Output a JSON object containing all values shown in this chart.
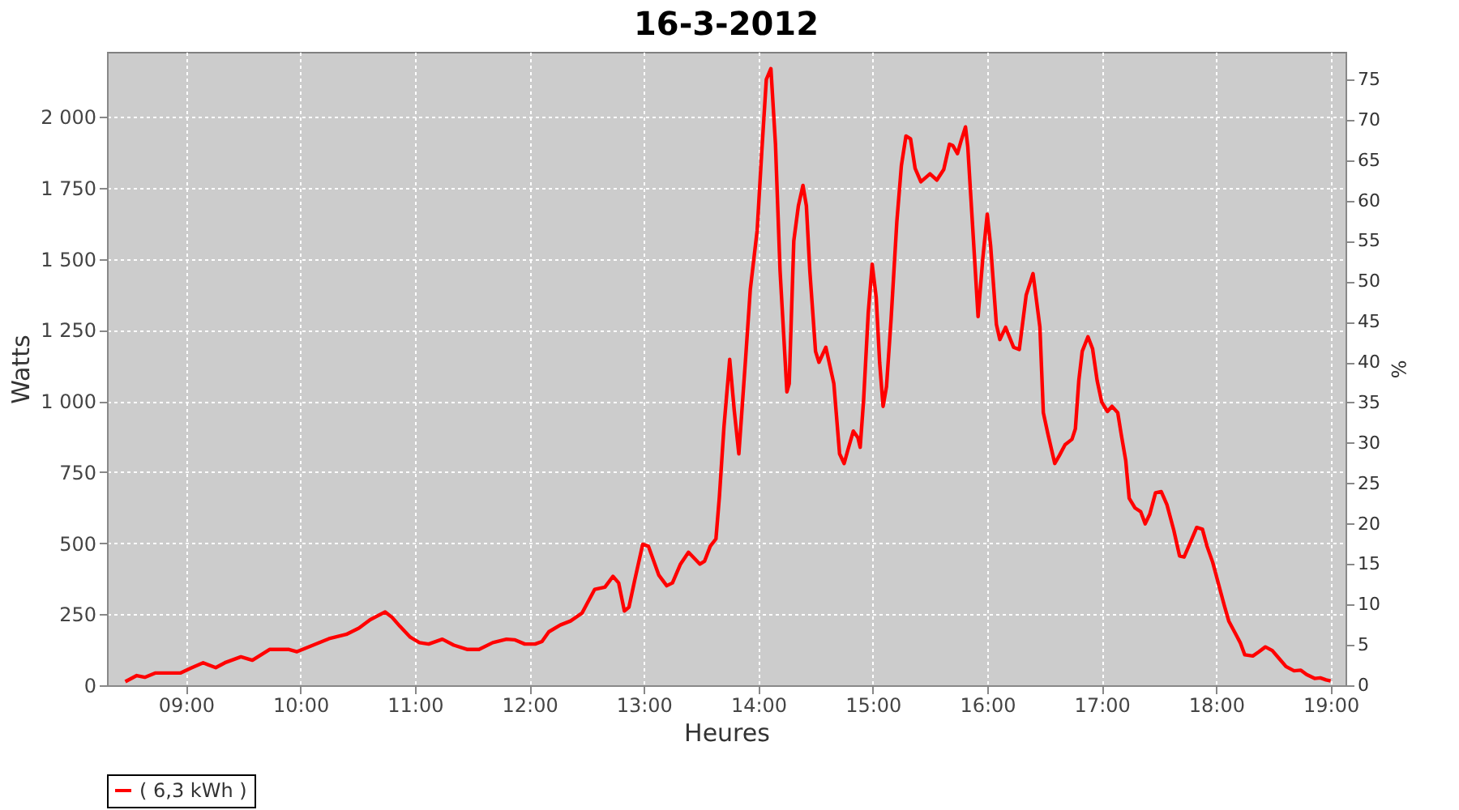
{
  "chart_data": {
    "type": "line",
    "title": "16-3-2012",
    "xlabel": "Heures",
    "ylabel": "Watts",
    "y2label": "%",
    "xlim": [
      8.31,
      19.13
    ],
    "xticks": [
      {
        "value": 9,
        "label": "09:00"
      },
      {
        "value": 10,
        "label": "10:00"
      },
      {
        "value": 11,
        "label": "11:00"
      },
      {
        "value": 12,
        "label": "12:00"
      },
      {
        "value": 13,
        "label": "13:00"
      },
      {
        "value": 14,
        "label": "14:00"
      },
      {
        "value": 15,
        "label": "15:00"
      },
      {
        "value": 16,
        "label": "16:00"
      },
      {
        "value": 17,
        "label": "17:00"
      },
      {
        "value": 18,
        "label": "18:00"
      },
      {
        "value": 19,
        "label": "19:00"
      }
    ],
    "ylim": [
      0,
      2228
    ],
    "yticks": [
      0,
      250,
      500,
      750,
      {
        "value": 1000,
        "label": "1 000"
      },
      {
        "value": 1250,
        "label": "1 250"
      },
      {
        "value": 1500,
        "label": "1 500"
      },
      {
        "value": 1750,
        "label": "1 750"
      },
      {
        "value": 2000,
        "label": "2 000"
      }
    ],
    "y2lim": [
      0,
      78.4
    ],
    "y2ticks": [
      0,
      5,
      10,
      15,
      20,
      25,
      30,
      35,
      40,
      45,
      50,
      55,
      60,
      65,
      70,
      75
    ],
    "grid": true,
    "legend": "bottom",
    "marker": "none",
    "line_style": "solid",
    "series": [
      {
        "name": "( 6,3 kWh )",
        "color": "#ff0000",
        "x": [
          8.47,
          8.57,
          8.64,
          8.73,
          8.95,
          9.04,
          9.15,
          9.26,
          9.35,
          9.48,
          9.58,
          9.73,
          9.9,
          9.97,
          10.11,
          10.25,
          10.4,
          10.51,
          10.61,
          10.74,
          10.8,
          10.87,
          10.96,
          11.04,
          11.12,
          11.24,
          11.34,
          11.46,
          11.56,
          11.68,
          11.8,
          11.87,
          11.96,
          12.05,
          12.11,
          12.17,
          12.27,
          12.36,
          12.46,
          12.5,
          12.57,
          12.66,
          12.73,
          12.78,
          12.83,
          12.87,
          12.92,
          12.99,
          13.04,
          13.13,
          13.2,
          13.25,
          13.32,
          13.39,
          13.49,
          13.53,
          13.58,
          13.63,
          13.66,
          13.7,
          13.75,
          13.79,
          13.83,
          13.89,
          13.93,
          13.99,
          14.03,
          14.07,
          14.11,
          14.15,
          14.19,
          14.25,
          14.27,
          14.31,
          14.35,
          14.39,
          14.42,
          14.45,
          14.5,
          14.53,
          14.59,
          14.66,
          14.71,
          14.75,
          14.78,
          14.83,
          14.87,
          14.89,
          14.92,
          14.96,
          14.995,
          15.03,
          15.06,
          15.09,
          15.12,
          15.16,
          15.21,
          15.25,
          15.29,
          15.33,
          15.37,
          15.42,
          15.5,
          15.56,
          15.62,
          15.67,
          15.7,
          15.74,
          15.77,
          15.81,
          15.83,
          15.87,
          15.92,
          15.96,
          16.0,
          16.03,
          16.08,
          16.11,
          16.16,
          16.23,
          16.28,
          16.34,
          16.4,
          16.46,
          16.49,
          16.53,
          16.59,
          16.63,
          16.68,
          16.74,
          16.77,
          16.8,
          16.83,
          16.88,
          16.92,
          16.96,
          17.0,
          17.05,
          17.09,
          17.14,
          17.17,
          17.21,
          17.24,
          17.29,
          17.34,
          17.38,
          17.42,
          17.47,
          17.52,
          17.57,
          17.63,
          17.68,
          17.72,
          17.77,
          17.83,
          17.88,
          17.92,
          17.97,
          18.02,
          18.07,
          18.11,
          18.16,
          18.21,
          18.25,
          18.32,
          18.37,
          18.43,
          18.49,
          18.55,
          18.61,
          18.68,
          18.74,
          18.79,
          18.86,
          18.91,
          18.96,
          19.0
        ],
        "values": [
          13,
          34,
          28,
          43,
          43,
          60,
          79,
          62,
          81,
          100,
          88,
          126,
          126,
          118,
          141,
          164,
          179,
          201,
          231,
          258,
          239,
          207,
          169,
          150,
          145,
          162,
          141,
          126,
          126,
          150,
          162,
          160,
          145,
          145,
          154,
          188,
          212,
          226,
          254,
          284,
          337,
          345,
          383,
          360,
          261,
          275,
          369,
          496,
          489,
          388,
          350,
          360,
          426,
          468,
          426,
          436,
          489,
          515,
          663,
          909,
          1146,
          966,
          814,
          1155,
          1392,
          1600,
          1875,
          2131,
          2169,
          1903,
          1458,
          1032,
          1061,
          1563,
          1686,
          1758,
          1686,
          1458,
          1174,
          1136,
          1189,
          1061,
          814,
          780,
          824,
          894,
          871,
          837,
          1004,
          1307,
          1481,
          1364,
          1136,
          981,
          1051,
          1288,
          1629,
          1828,
          1932,
          1922,
          1818,
          1771,
          1799,
          1777,
          1814,
          1903,
          1898,
          1870,
          1913,
          1964,
          1894,
          1629,
          1297,
          1496,
          1657,
          1544,
          1269,
          1216,
          1259,
          1189,
          1181,
          1372,
          1448,
          1260,
          959,
          884,
          780,
          808,
          846,
          865,
          902,
          1072,
          1175,
          1226,
          1184,
          1072,
          996,
          963,
          981,
          959,
          884,
          790,
          658,
          624,
          611,
          568,
          602,
          677,
          681,
          635,
          545,
          455,
          451,
          498,
          555,
          549,
          489,
          432,
          357,
          282,
          226,
          188,
          150,
          107,
          103,
          117,
          135,
          122,
          94,
          66,
          51,
          53,
          38,
          24,
          26,
          19,
          15
        ]
      }
    ]
  }
}
